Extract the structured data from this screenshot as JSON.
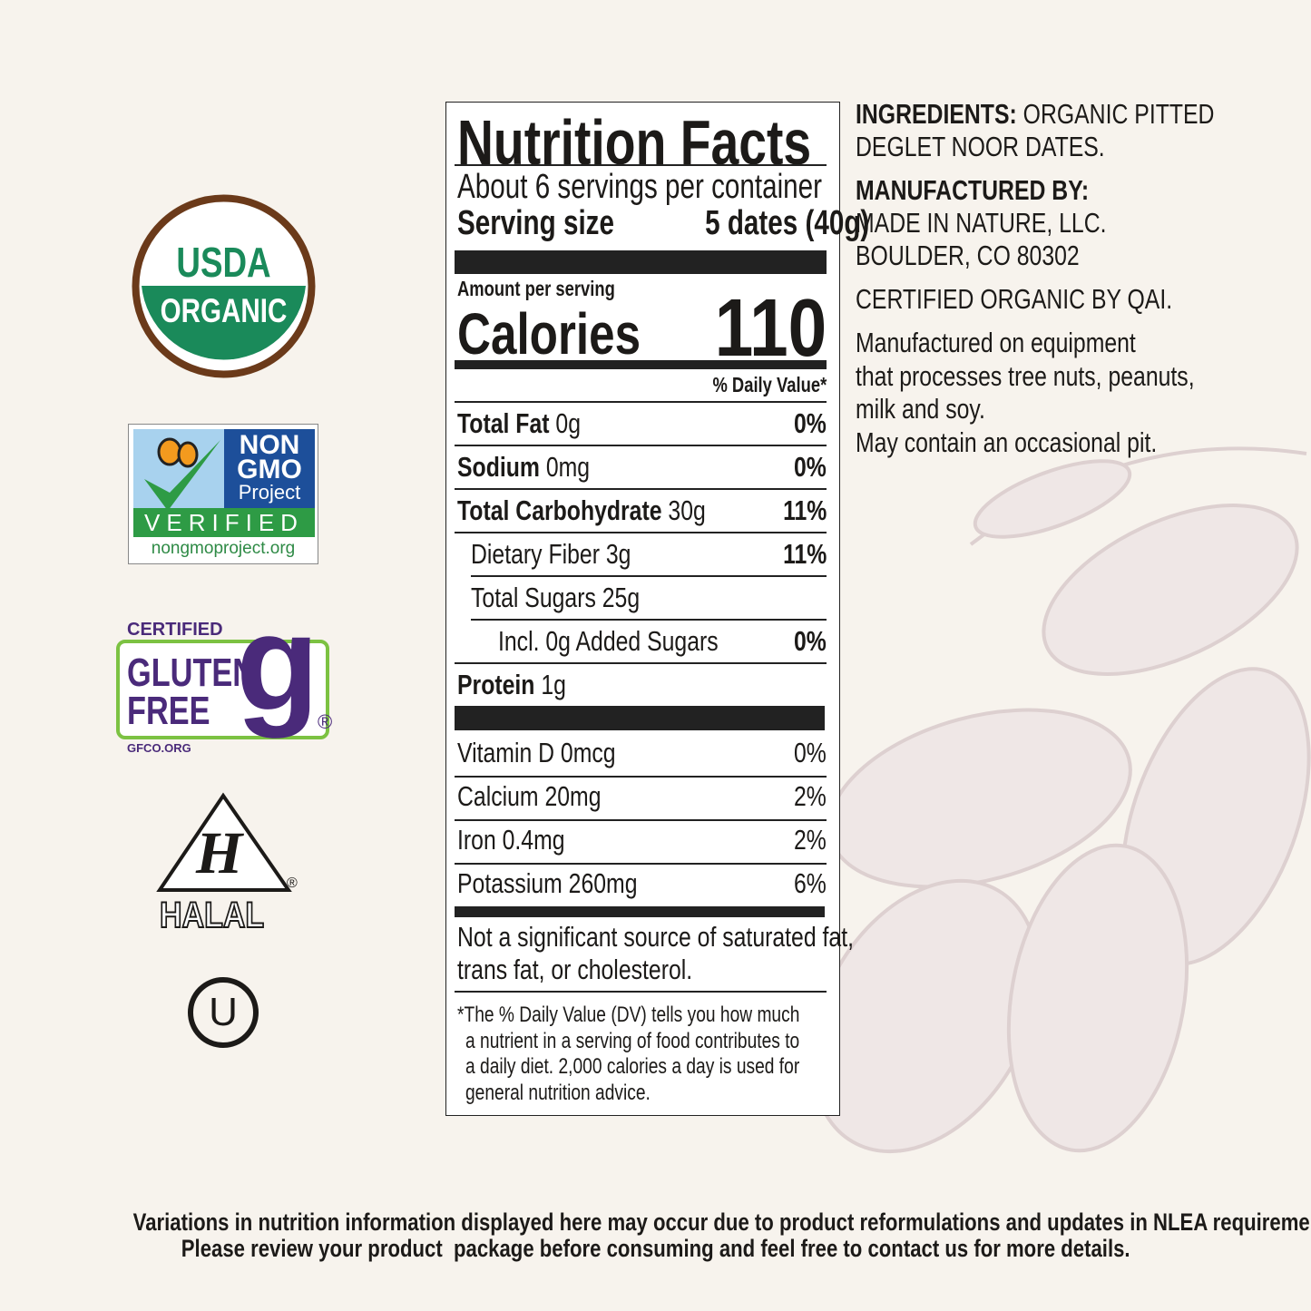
{
  "certifications": {
    "usda": {
      "line1": "USDA",
      "line2": "ORGANIC",
      "colors": {
        "green": "#1a8a5a",
        "brown": "#6b3a1a"
      }
    },
    "non_gmo": {
      "line1": "NON",
      "line2": "GMO",
      "line3": "Project",
      "verified": "VERIFIED",
      "url": "nongmoproject.org"
    },
    "gluten_free": {
      "certified": "CERTIFIED",
      "line1": "GLUTEN",
      "line2": "FREE",
      "mark": "g",
      "url": "GFCO.ORG",
      "registered": "®"
    },
    "halal": {
      "letter": "H",
      "label": "HALAL",
      "registered": "®"
    },
    "kosher": {
      "letter": "U"
    }
  },
  "nutrition": {
    "title": "Nutrition Facts",
    "servings": "About 6 servings per container",
    "serving_size_label": "Serving size",
    "serving_size_value": "5 dates (40g)",
    "amount_per_serving": "Amount per serving",
    "calories_label": "Calories",
    "calories_value": "110",
    "dv_header": "% Daily Value*",
    "nutrients": [
      {
        "name": "Total Fat",
        "amount": "0g",
        "dv": "0%"
      },
      {
        "name": "Sodium",
        "amount": "0mg",
        "dv": "0%"
      },
      {
        "name": "Total Carbohydrate",
        "amount": "30g",
        "dv": "11%"
      },
      {
        "name": "Dietary Fiber 3g",
        "amount": "",
        "dv": "11%"
      },
      {
        "name": "Total Sugars 25g",
        "amount": "",
        "dv": ""
      },
      {
        "name": "Incl. 0g Added Sugars",
        "amount": "",
        "dv": "0%"
      },
      {
        "name": "Protein",
        "amount": "1g",
        "dv": ""
      }
    ],
    "vitamins": [
      {
        "name": "Vitamin D 0mcg",
        "dv": "0%"
      },
      {
        "name": "Calcium 20mg",
        "dv": "2%"
      },
      {
        "name": "Iron 0.4mg",
        "dv": "2%"
      },
      {
        "name": "Potassium 260mg",
        "dv": "6%"
      }
    ],
    "not_significant": [
      "Not a significant source of saturated fat,",
      "trans fat, or cholesterol."
    ],
    "footnote": [
      "*The % Daily Value (DV) tells you how much",
      "a nutrient in a serving of food contributes to",
      "a daily diet. 2,000 calories a day is used for",
      "general nutrition advice."
    ]
  },
  "info": {
    "ingredients_label": "INGREDIENTS:",
    "ingredients_text_1": "ORGANIC PITTED",
    "ingredients_text_2": "DEGLET NOOR DATES.",
    "manufactured_label": "MANUFACTURED BY:",
    "manufacturer_1": "MADE IN NATURE, LLC.",
    "manufacturer_2": "BOULDER, CO 80302",
    "certified": "CERTIFIED ORGANIC BY QAI.",
    "allergen": [
      "Manufactured on equipment",
      "that processes tree nuts, peanuts,",
      "milk and soy.",
      "May contain an occasional pit."
    ]
  },
  "disclaimer": [
    "Variations in nutrition information displayed here may occur due to product reformulations and updates in NLEA requirements.",
    "Please review your product  package before consuming and feel free to contact us for more details."
  ]
}
